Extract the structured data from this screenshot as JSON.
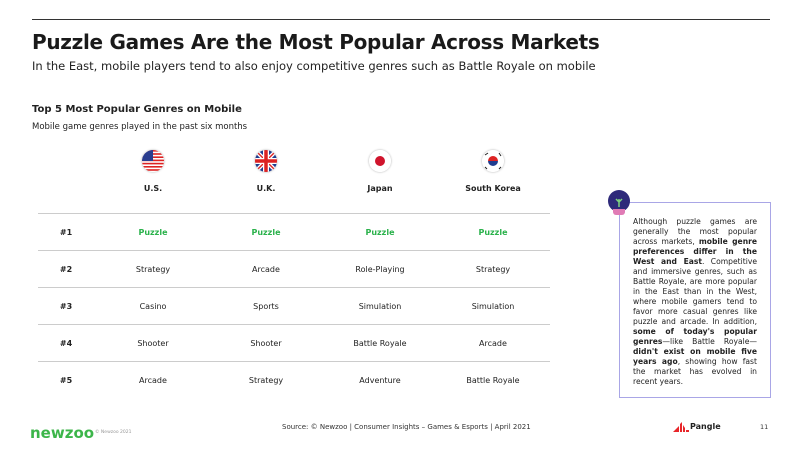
{
  "title": "Puzzle Games Are the Most Popular Across Markets",
  "subtitle": "In the East, mobile players tend to also enjoy competitive genres such as Battle Royale on mobile",
  "section": {
    "title": "Top 5 Most Popular Genres on Mobile",
    "subtitle": "Mobile game genres played in the past six months"
  },
  "table": {
    "columns": [
      {
        "label": "U.S.",
        "flag": "us-flag-icon"
      },
      {
        "label": "U.K.",
        "flag": "uk-flag-icon"
      },
      {
        "label": "Japan",
        "flag": "japan-flag-icon"
      },
      {
        "label": "South Korea",
        "flag": "south-korea-flag-icon"
      }
    ],
    "rows": [
      {
        "rank": "#1",
        "values": [
          "Puzzle",
          "Puzzle",
          "Puzzle",
          "Puzzle"
        ]
      },
      {
        "rank": "#2",
        "values": [
          "Strategy",
          "Arcade",
          "Role-Playing",
          "Strategy"
        ]
      },
      {
        "rank": "#3",
        "values": [
          "Casino",
          "Sports",
          "Simulation",
          "Simulation"
        ]
      },
      {
        "rank": "#4",
        "values": [
          "Shooter",
          "Shooter",
          "Battle Royale",
          "Arcade"
        ]
      },
      {
        "rank": "#5",
        "values": [
          "Arcade",
          "Strategy",
          "Adventure",
          "Battle Royale"
        ]
      }
    ],
    "highlight_color": "#2bb24c"
  },
  "callout": {
    "icon": "lightbulb-icon",
    "parts": [
      {
        "t": "Although puzzle games are generally the most popular across markets, ",
        "b": false
      },
      {
        "t": "mobile genre preferences differ in the West and East",
        "b": true
      },
      {
        "t": ". Competitive and immersive genres, such as Battle Royale, are more popular in the East than in the West, where mobile gamers tend to favor more casual genres like puzzle and arcade. In addition, ",
        "b": false
      },
      {
        "t": "some of today's popular genres",
        "b": true
      },
      {
        "t": "—like Battle Royale—",
        "b": false
      },
      {
        "t": "didn't exist on mobile five years ago",
        "b": true
      },
      {
        "t": ", showing how fast the market has evolved in recent years.",
        "b": false
      }
    ]
  },
  "footer": {
    "logo": "newzoo",
    "copyright": "© Newzoo 2021",
    "source": "Source: © Newzoo | Consumer Insights – Games & Esports | April 2021",
    "partner": "Pangle",
    "page": "11"
  }
}
